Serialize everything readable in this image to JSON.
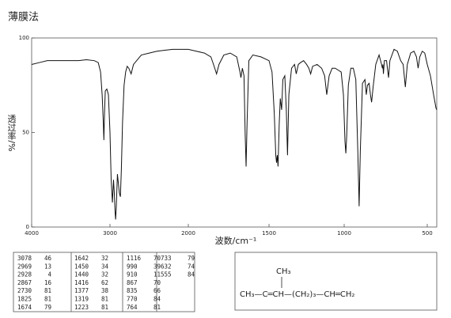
{
  "chart_data": {
    "type": "line",
    "title": "薄膜法",
    "x_label": "波数/cm⁻¹",
    "y_label": "透过率/%",
    "color": "#111111",
    "xlim": [
      4000,
      440
    ],
    "ylim": [
      0,
      100
    ],
    "xticks": [
      4000,
      3000,
      2000,
      1500,
      1000,
      500
    ],
    "yticks": [
      0,
      50,
      100
    ],
    "x": [
      4000,
      3900,
      3800,
      3700,
      3600,
      3500,
      3400,
      3300,
      3200,
      3150,
      3120,
      3100,
      3085,
      3078,
      3070,
      3060,
      3040,
      3020,
      3000,
      2985,
      2969,
      2955,
      2945,
      2935,
      2928,
      2920,
      2905,
      2890,
      2880,
      2867,
      2855,
      2840,
      2820,
      2800,
      2780,
      2760,
      2730,
      2700,
      2600,
      2500,
      2400,
      2300,
      2200,
      2100,
      2000,
      1950,
      1900,
      1860,
      1840,
      1825,
      1810,
      1780,
      1740,
      1700,
      1690,
      1680,
      1674,
      1665,
      1655,
      1648,
      1642,
      1636,
      1625,
      1600,
      1550,
      1500,
      1480,
      1465,
      1455,
      1450,
      1445,
      1440,
      1432,
      1425,
      1416,
      1408,
      1395,
      1385,
      1377,
      1368,
      1350,
      1330,
      1319,
      1305,
      1290,
      1270,
      1250,
      1235,
      1223,
      1210,
      1180,
      1150,
      1130,
      1116,
      1100,
      1080,
      1060,
      1040,
      1020,
      1005,
      995,
      990,
      985,
      975,
      960,
      945,
      930,
      918,
      910,
      903,
      890,
      875,
      867,
      860,
      850,
      842,
      835,
      826,
      810,
      790,
      775,
      770,
      767,
      764,
      758,
      745,
      740,
      733,
      725,
      700,
      680,
      660,
      645,
      632,
      620,
      600,
      580,
      565,
      555,
      545,
      530,
      515,
      500,
      480,
      460,
      445,
      440
    ],
    "values": [
      86,
      87,
      88,
      88,
      88,
      88,
      88,
      88.5,
      88,
      87,
      82,
      70,
      55,
      46,
      60,
      72,
      73,
      70,
      50,
      25,
      13,
      25,
      18,
      8,
      4,
      10,
      28,
      22,
      18,
      16,
      30,
      55,
      75,
      82,
      85,
      84,
      81,
      86,
      91,
      92,
      93,
      93.5,
      94,
      94,
      94,
      93,
      92,
      90,
      85,
      81,
      86,
      91,
      92,
      90,
      86,
      82,
      79,
      84,
      80,
      50,
      32,
      55,
      88,
      91,
      90,
      88,
      82,
      60,
      38,
      34,
      38,
      32,
      55,
      68,
      62,
      78,
      80,
      62,
      38,
      70,
      84,
      86,
      81,
      86,
      87,
      88,
      86,
      84,
      81,
      85,
      86,
      84,
      80,
      70,
      80,
      84,
      84,
      83,
      82,
      70,
      45,
      39,
      48,
      75,
      84,
      84,
      78,
      40,
      11,
      40,
      76,
      78,
      70,
      75,
      76,
      70,
      66,
      74,
      86,
      91,
      86,
      84,
      86,
      81,
      88,
      88,
      84,
      79,
      88,
      94,
      93,
      88,
      86,
      74,
      86,
      92,
      93,
      90,
      84,
      90,
      93,
      92,
      86,
      80,
      70,
      63,
      62
    ],
    "peak_table": [
      [
        3078,
        46
      ],
      [
        2969,
        13
      ],
      [
        2928,
        4
      ],
      [
        2867,
        16
      ],
      [
        2730,
        81
      ],
      [
        1825,
        81
      ],
      [
        1674,
        79
      ],
      [
        1642,
        32
      ],
      [
        1450,
        34
      ],
      [
        1440,
        32
      ],
      [
        1416,
        62
      ],
      [
        1377,
        38
      ],
      [
        1319,
        81
      ],
      [
        1223,
        81
      ],
      [
        1116,
        70
      ],
      [
        990,
        39
      ],
      [
        910,
        11
      ],
      [
        867,
        70
      ],
      [
        835,
        66
      ],
      [
        770,
        84
      ],
      [
        764,
        81
      ],
      [
        733,
        79
      ],
      [
        632,
        74
      ],
      [
        555,
        84
      ]
    ],
    "structure": {
      "branch": "CH₃",
      "formula": "CH₃—C═CH—(CH₂)₃—CH═CH₂"
    }
  }
}
